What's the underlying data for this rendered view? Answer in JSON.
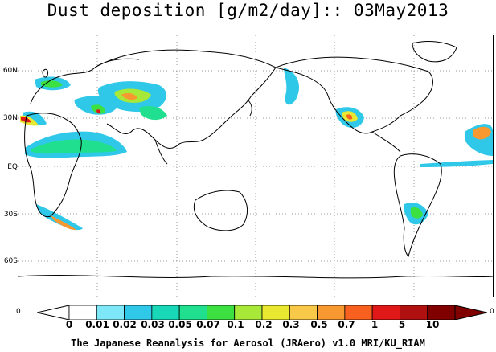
{
  "title": "Dust deposition [g/m2/day]:: 03May2013",
  "lat_labels": [
    "60N",
    "30N",
    "EQ",
    "30S",
    "60S"
  ],
  "corner_left": "0",
  "corner_right": "0",
  "colorbar": {
    "labels": [
      "0",
      "0.01",
      "0.02",
      "0.03",
      "0.05",
      "0.07",
      "0.1",
      "0.2",
      "0.3",
      "0.5",
      "0.7",
      "1",
      "5",
      "10"
    ],
    "colors": [
      "#ffffff",
      "#7fe8f8",
      "#30c8e8",
      "#18d8b8",
      "#20e090",
      "#3ce040",
      "#a8e838",
      "#e8e830",
      "#f8c848",
      "#f89830",
      "#f86020",
      "#e01818",
      "#b01010",
      "#800000"
    ]
  },
  "footer": "The Japanese Reanalysis for Aerosol (JRAero) v1.0 MRI/KU_RIAM"
}
